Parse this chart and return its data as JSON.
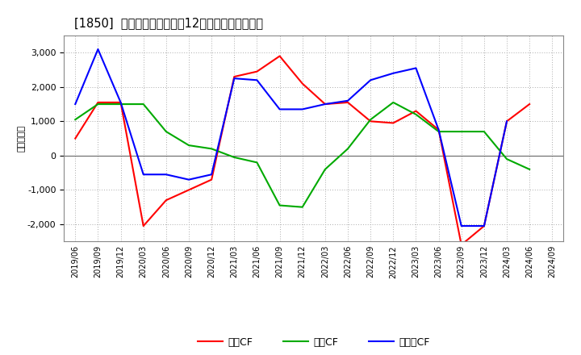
{
  "title": "[1850]  キャッシュフローの12か月移動合計の推移",
  "ylabel": "（百万円）",
  "x_labels": [
    "2019/06",
    "2019/09",
    "2019/12",
    "2020/03",
    "2020/06",
    "2020/09",
    "2020/12",
    "2021/03",
    "2021/06",
    "2021/09",
    "2021/12",
    "2022/03",
    "2022/06",
    "2022/09",
    "2022/12",
    "2023/03",
    "2023/06",
    "2023/09",
    "2023/12",
    "2024/03",
    "2024/06",
    "2024/09"
  ],
  "operating_cf": [
    500,
    1550,
    1550,
    -2050,
    -1300,
    -1000,
    -700,
    2300,
    2450,
    2900,
    2100,
    1500,
    1550,
    1000,
    950,
    1300,
    750,
    -2600,
    -2050,
    1000,
    1500,
    null
  ],
  "investing_cf": [
    1050,
    1500,
    1500,
    1500,
    700,
    300,
    200,
    -50,
    -200,
    -1450,
    -1500,
    -400,
    200,
    1050,
    1550,
    1200,
    700,
    700,
    700,
    -100,
    -400,
    null
  ],
  "free_cf": [
    1500,
    3100,
    1550,
    -550,
    -550,
    -700,
    -550,
    2250,
    2200,
    1350,
    1350,
    1500,
    1600,
    2200,
    2400,
    2550,
    750,
    -2050,
    -2050,
    1000,
    null,
    null
  ],
  "operating_color": "#ff0000",
  "investing_color": "#00aa00",
  "free_color": "#0000ff",
  "bg_color": "#ffffff",
  "plot_bg_color": "#ffffff",
  "ylim": [
    -2500,
    3500
  ],
  "yticks": [
    -2000,
    -1000,
    0,
    1000,
    2000,
    3000
  ],
  "grid_color": "#aaaaaa",
  "zero_line_color": "#666666",
  "legend_labels": [
    "営業CF",
    "投資CF",
    "フリーCF"
  ]
}
